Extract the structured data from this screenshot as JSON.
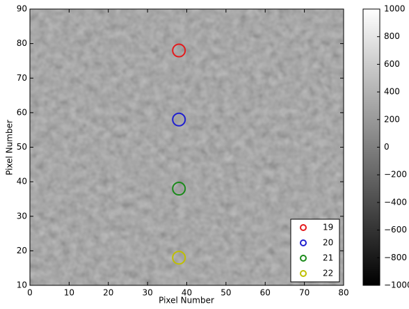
{
  "chart_data": {
    "type": "scatter",
    "xlabel": "Pixel Number",
    "ylabel": "Pixel Number",
    "xlim": [
      0,
      80
    ],
    "ylim": [
      10,
      90
    ],
    "xticks": [
      0,
      10,
      20,
      30,
      40,
      50,
      60,
      70,
      80
    ],
    "yticks": [
      10,
      20,
      30,
      40,
      50,
      60,
      70,
      80,
      90
    ],
    "legend": "lower right",
    "series": [
      {
        "name": "19",
        "color": "#e41a1c",
        "x": [
          38
        ],
        "y": [
          78
        ]
      },
      {
        "name": "20",
        "color": "#1f1fd0",
        "x": [
          38
        ],
        "y": [
          58
        ]
      },
      {
        "name": "21",
        "color": "#1a8a1a",
        "x": [
          38
        ],
        "y": [
          38
        ]
      },
      {
        "name": "22",
        "color": "#bfbf00",
        "x": [
          38
        ],
        "y": [
          18
        ]
      }
    ],
    "colorbar": {
      "lim": [
        -1000,
        1000
      ],
      "ticks": [
        {
          "value": -1000,
          "label": "−1000"
        },
        {
          "value": -800,
          "label": "−800"
        },
        {
          "value": -600,
          "label": "−600"
        },
        {
          "value": -400,
          "label": "−400"
        },
        {
          "value": -200,
          "label": "−200"
        },
        0,
        200,
        400,
        600,
        800,
        1000
      ]
    }
  }
}
